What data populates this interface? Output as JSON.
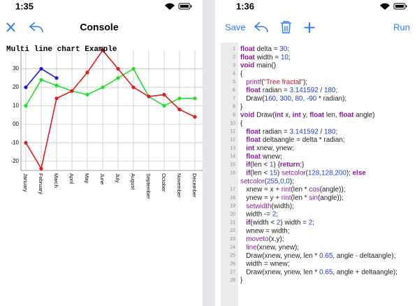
{
  "left_screen": {
    "time": "1:35",
    "title": "Console",
    "chart_data": {
      "type": "line",
      "title": "Multi line chart Example",
      "categories": [
        "January",
        "February",
        "March",
        "April",
        "May",
        "June",
        "July",
        "August",
        "September",
        "October",
        "November",
        "December"
      ],
      "series": [
        {
          "color": "#1c1ce0",
          "values": [
            20,
            30,
            25,
            null,
            null,
            null,
            null,
            null,
            null,
            null,
            null,
            null
          ]
        },
        {
          "color": "#22e02a",
          "values": [
            10,
            24,
            21,
            18,
            16,
            20,
            25,
            30,
            15,
            10,
            14,
            14
          ]
        },
        {
          "color": "#e31b1b",
          "values": [
            -10,
            -24,
            14,
            18,
            28,
            40,
            30,
            20,
            15,
            16,
            8,
            4
          ]
        }
      ],
      "ylim": [
        -25,
        40
      ],
      "yticks": [
        30,
        20,
        10,
        {
          "value": 0,
          "label": "00"
        },
        -10,
        -20
      ],
      "grid": true
    }
  },
  "right_screen": {
    "time": "1:36",
    "toolbar": {
      "save": "Save",
      "run": "Run"
    },
    "code": {
      "line_numbers": [
        1,
        2,
        3,
        4,
        5,
        6,
        7,
        8,
        9,
        10,
        11,
        12,
        13,
        14,
        15,
        16,
        null,
        17,
        18,
        19,
        20,
        21,
        22,
        23,
        24,
        25,
        26,
        27,
        28
      ],
      "lines": [
        "float delta = 30;",
        "float width = 10;",
        "void main()",
        "{",
        "   printf(\"Tree fractal\");",
        "   float radian = 3.141592 / 180;",
        "   Draw(160, 300, 80, -90 * radian);",
        "}",
        "void Draw(int x, int y, float len, float angle)",
        "{",
        "   float radian = 3.141592 / 180;",
        "   float deltaangle = delta * radian;",
        "   int xnew, ynew;",
        "   float wnew;",
        "   if(len < 1) {return;}",
        "   if(len < 15) setcolor(128,128,200); else",
        "setcolor(255,0,0);",
        "   xnew = x + rint(len * cos(angle));",
        "   ynew = y + rint(len * sin(angle));",
        "   setwidth(width);",
        "   width -= 2;",
        "   if(width < 2) width = 2;",
        "   wnew = width;",
        "   moveto(x,y);",
        "   line(xnew, ynew);",
        "   Draw(xnew, ynew, len * 0.65, angle - deltaangle);",
        "   width = wnew;",
        "   Draw(xnew, ynew, len * 0.65, angle + deltaangle);",
        "}"
      ]
    }
  }
}
